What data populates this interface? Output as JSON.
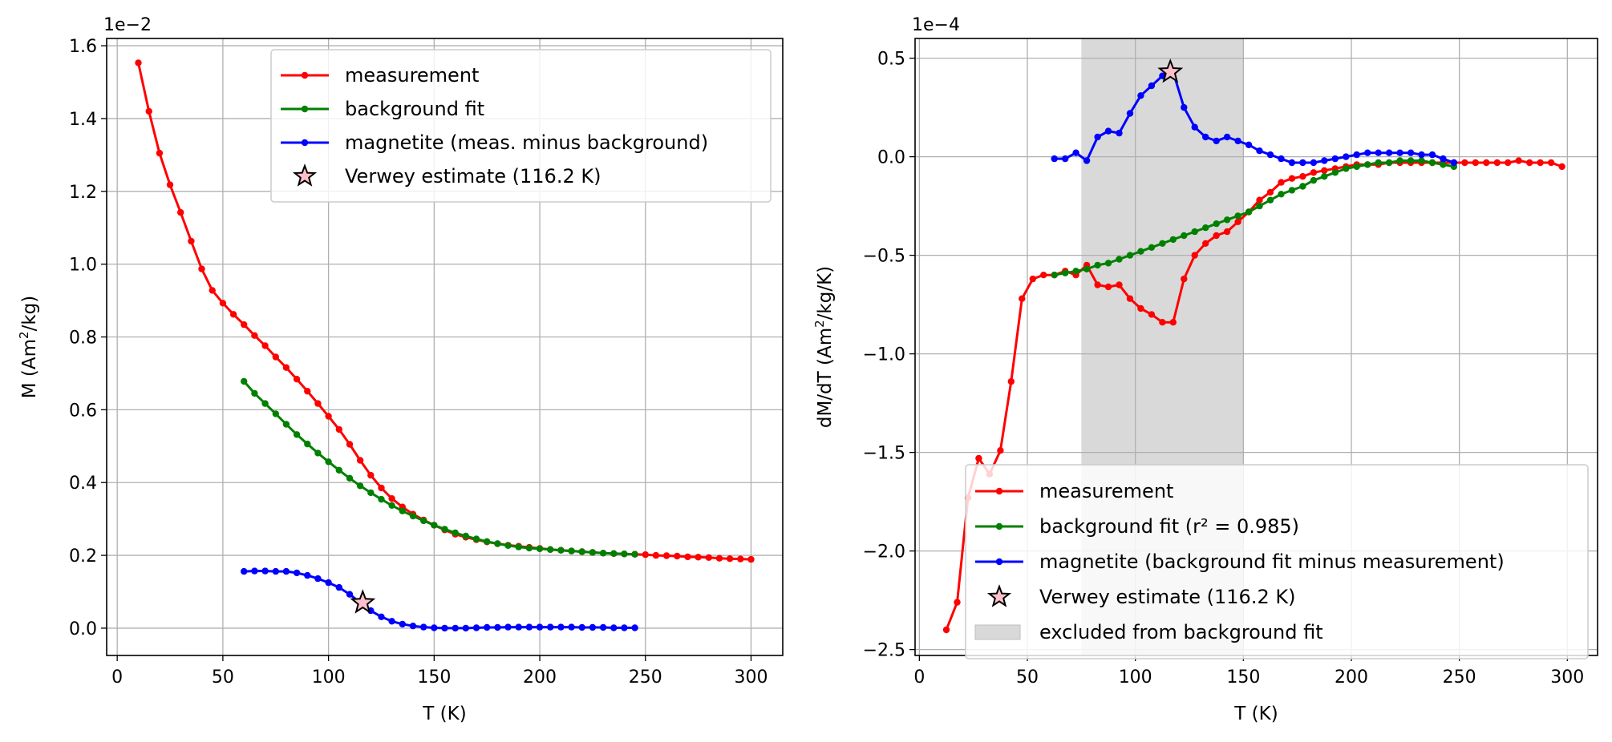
{
  "chart_data": [
    {
      "type": "line",
      "ylabel_main": "M (Am",
      "ylabel_sup": "2",
      "ylabel_tail": "/kg)",
      "xlabel": "T (K)",
      "offset_text": "1e−2",
      "xlim": [
        -5,
        315
      ],
      "ylim": [
        -0.075,
        1.62
      ],
      "xticks": [
        0,
        50,
        100,
        150,
        200,
        250,
        300
      ],
      "xtick_labels": [
        "0",
        "50",
        "100",
        "150",
        "200",
        "250",
        "300"
      ],
      "yticks": [
        0,
        0.2,
        0.4,
        0.6,
        0.8,
        1.0,
        1.2,
        1.4,
        1.6
      ],
      "ytick_labels": [
        "0.0",
        "0.2",
        "0.4",
        "0.6",
        "0.8",
        "1.0",
        "1.2",
        "1.4",
        "1.6"
      ],
      "grid": true,
      "legend_position": "upper-center",
      "series": [
        {
          "name": "measurement",
          "color": "#ff0000",
          "x": [
            10,
            15,
            20,
            25,
            30,
            35,
            40,
            45,
            50,
            55,
            60,
            65,
            70,
            75,
            80,
            85,
            90,
            95,
            100,
            105,
            110,
            115,
            120,
            125,
            130,
            135,
            140,
            145,
            150,
            155,
            160,
            165,
            170,
            175,
            180,
            185,
            190,
            195,
            200,
            205,
            210,
            215,
            220,
            225,
            230,
            235,
            240,
            245,
            250,
            255,
            260,
            265,
            270,
            275,
            280,
            285,
            290,
            295,
            300
          ],
          "y": [
            1.553,
            1.42,
            1.305,
            1.218,
            1.142,
            1.063,
            0.987,
            0.928,
            0.893,
            0.862,
            0.834,
            0.804,
            0.776,
            0.745,
            0.716,
            0.684,
            0.651,
            0.617,
            0.582,
            0.546,
            0.505,
            0.461,
            0.42,
            0.385,
            0.356,
            0.333,
            0.313,
            0.297,
            0.283,
            0.27,
            0.258,
            0.25,
            0.243,
            0.237,
            0.232,
            0.228,
            0.225,
            0.222,
            0.219,
            0.216,
            0.214,
            0.212,
            0.21,
            0.208,
            0.206,
            0.205,
            0.204,
            0.203,
            0.202,
            0.2,
            0.199,
            0.198,
            0.196,
            0.195,
            0.194,
            0.192,
            0.191,
            0.19,
            0.189
          ]
        },
        {
          "name": "background fit",
          "color": "#008000",
          "x": [
            60,
            65,
            70,
            75,
            80,
            85,
            90,
            95,
            100,
            105,
            110,
            115,
            120,
            125,
            130,
            135,
            140,
            145,
            150,
            155,
            160,
            165,
            170,
            175,
            180,
            185,
            190,
            195,
            200,
            205,
            210,
            215,
            220,
            225,
            230,
            235,
            240,
            245
          ],
          "y": [
            0.678,
            0.645,
            0.617,
            0.589,
            0.56,
            0.532,
            0.506,
            0.481,
            0.457,
            0.434,
            0.412,
            0.391,
            0.372,
            0.354,
            0.337,
            0.322,
            0.308,
            0.295,
            0.283,
            0.272,
            0.262,
            0.253,
            0.245,
            0.238,
            0.232,
            0.227,
            0.223,
            0.22,
            0.218,
            0.216,
            0.214,
            0.212,
            0.21,
            0.208,
            0.206,
            0.205,
            0.204,
            0.203
          ]
        },
        {
          "name": "magnetite (meas. minus background)",
          "color": "#0000ff",
          "x": [
            60,
            65,
            70,
            75,
            80,
            85,
            90,
            95,
            100,
            105,
            110,
            115,
            120,
            125,
            130,
            135,
            140,
            145,
            150,
            155,
            160,
            165,
            170,
            175,
            180,
            185,
            190,
            195,
            200,
            205,
            210,
            215,
            220,
            225,
            230,
            235,
            240,
            245
          ],
          "y": [
            0.156,
            0.157,
            0.157,
            0.156,
            0.156,
            0.152,
            0.145,
            0.136,
            0.125,
            0.112,
            0.093,
            0.07,
            0.048,
            0.031,
            0.019,
            0.011,
            0.006,
            0.003,
            0.001,
            0.0,
            0.0,
            0.0,
            0.001,
            0.002,
            0.002,
            0.003,
            0.003,
            0.003,
            0.003,
            0.003,
            0.003,
            0.003,
            0.002,
            0.002,
            0.002,
            0.001,
            0.001,
            0.001
          ]
        }
      ],
      "star": {
        "name": "Verwey estimate (116.2 K)",
        "x": 116.2,
        "y": 0.07,
        "color": "#ffc0cb"
      }
    },
    {
      "type": "line",
      "ylabel_main": "dM/dT (Am",
      "ylabel_sup": "2",
      "ylabel_tail": "/kg/K)",
      "xlabel": "T (K)",
      "offset_text": "1e−4",
      "xlim": [
        -2,
        314
      ],
      "ylim": [
        -2.53,
        0.6
      ],
      "xticks": [
        0,
        50,
        100,
        150,
        200,
        250,
        300
      ],
      "xtick_labels": [
        "0",
        "50",
        "100",
        "150",
        "200",
        "250",
        "300"
      ],
      "yticks": [
        -2.5,
        -2.0,
        -1.5,
        -1.0,
        -0.5,
        0.0,
        0.5
      ],
      "ytick_labels": [
        "−2.5",
        "−2.0",
        "−1.5",
        "−1.0",
        "−0.5",
        "0.0",
        "0.5"
      ],
      "grid": true,
      "legend_position": "lower-right",
      "excluded_region": {
        "name": "excluded from background fit",
        "x_from": 75,
        "x_to": 150,
        "color": "#d9d9d9"
      },
      "series": [
        {
          "name": "measurement",
          "color": "#ff0000",
          "x": [
            12.5,
            17.5,
            22.5,
            27.5,
            32.5,
            37.5,
            42.5,
            47.5,
            52.5,
            57.5,
            62.5,
            67.5,
            72.5,
            77.5,
            82.5,
            87.5,
            92.5,
            97.5,
            102.5,
            107.5,
            112.5,
            117.5,
            122.5,
            127.5,
            132.5,
            137.5,
            142.5,
            147.5,
            152.5,
            157.5,
            162.5,
            167.5,
            172.5,
            177.5,
            182.5,
            187.5,
            192.5,
            197.5,
            202.5,
            207.5,
            212.5,
            217.5,
            222.5,
            227.5,
            232.5,
            237.5,
            242.5,
            247.5,
            252.5,
            257.5,
            262.5,
            267.5,
            272.5,
            277.5,
            282.5,
            287.5,
            292.5,
            297.5
          ],
          "y": [
            -2.4,
            -2.26,
            -1.73,
            -1.53,
            -1.61,
            -1.49,
            -1.14,
            -0.72,
            -0.62,
            -0.6,
            -0.6,
            -0.58,
            -0.6,
            -0.55,
            -0.65,
            -0.66,
            -0.65,
            -0.72,
            -0.77,
            -0.8,
            -0.84,
            -0.84,
            -0.62,
            -0.5,
            -0.44,
            -0.4,
            -0.38,
            -0.33,
            -0.28,
            -0.22,
            -0.18,
            -0.13,
            -0.11,
            -0.1,
            -0.08,
            -0.07,
            -0.06,
            -0.05,
            -0.04,
            -0.04,
            -0.04,
            -0.03,
            -0.03,
            -0.03,
            -0.03,
            -0.03,
            -0.03,
            -0.03,
            -0.03,
            -0.03,
            -0.03,
            -0.03,
            -0.03,
            -0.02,
            -0.03,
            -0.03,
            -0.03,
            -0.05
          ]
        },
        {
          "name": "background fit (r² = 0.985)",
          "color": "#008000",
          "x": [
            62.5,
            67.5,
            72.5,
            77.5,
            82.5,
            87.5,
            92.5,
            97.5,
            102.5,
            107.5,
            112.5,
            117.5,
            122.5,
            127.5,
            132.5,
            137.5,
            142.5,
            147.5,
            152.5,
            157.5,
            162.5,
            167.5,
            172.5,
            177.5,
            182.5,
            187.5,
            192.5,
            197.5,
            202.5,
            207.5,
            212.5,
            217.5,
            222.5,
            227.5,
            232.5,
            237.5,
            242.5,
            247.5
          ],
          "y": [
            -0.6,
            -0.59,
            -0.58,
            -0.57,
            -0.55,
            -0.54,
            -0.52,
            -0.5,
            -0.48,
            -0.46,
            -0.44,
            -0.42,
            -0.4,
            -0.38,
            -0.36,
            -0.34,
            -0.32,
            -0.3,
            -0.28,
            -0.25,
            -0.22,
            -0.19,
            -0.17,
            -0.15,
            -0.12,
            -0.1,
            -0.08,
            -0.06,
            -0.05,
            -0.04,
            -0.03,
            -0.03,
            -0.02,
            -0.02,
            -0.02,
            -0.03,
            -0.04,
            -0.05
          ]
        },
        {
          "name": "magnetite (background fit minus measurement)",
          "color": "#0000ff",
          "x": [
            62.5,
            67.5,
            72.5,
            77.5,
            82.5,
            87.5,
            92.5,
            97.5,
            102.5,
            107.5,
            112.5,
            117.5,
            122.5,
            127.5,
            132.5,
            137.5,
            142.5,
            147.5,
            152.5,
            157.5,
            162.5,
            167.5,
            172.5,
            177.5,
            182.5,
            187.5,
            192.5,
            197.5,
            202.5,
            207.5,
            212.5,
            217.5,
            222.5,
            227.5,
            232.5,
            237.5,
            242.5,
            247.5
          ],
          "y": [
            -0.01,
            -0.01,
            0.02,
            -0.02,
            0.1,
            0.13,
            0.12,
            0.22,
            0.31,
            0.36,
            0.41,
            0.43,
            0.25,
            0.15,
            0.1,
            0.08,
            0.1,
            0.08,
            0.06,
            0.03,
            0.01,
            -0.01,
            -0.03,
            -0.03,
            -0.03,
            -0.02,
            -0.01,
            0.0,
            0.01,
            0.02,
            0.02,
            0.02,
            0.02,
            0.02,
            0.01,
            0.01,
            -0.01,
            -0.03
          ]
        }
      ],
      "star": {
        "name": "Verwey estimate (116.2 K)",
        "x": 116.2,
        "y": 0.43,
        "color": "#ffc0cb"
      }
    }
  ]
}
